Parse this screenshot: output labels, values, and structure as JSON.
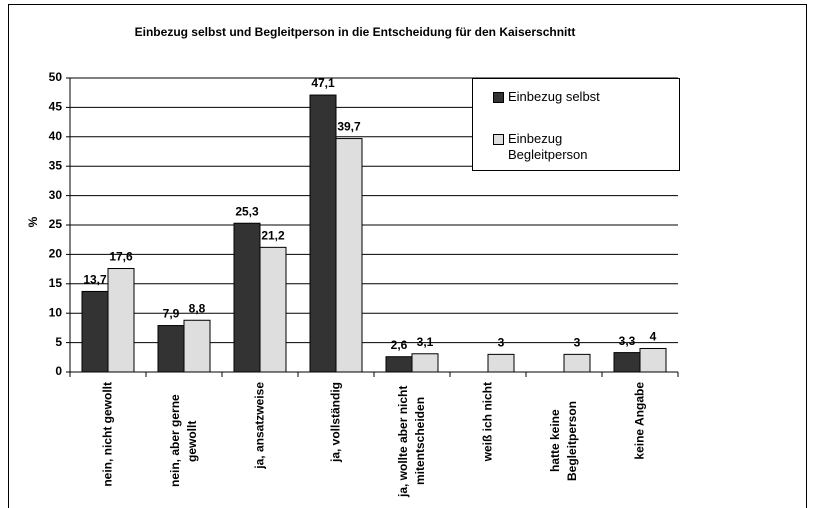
{
  "chart_data": {
    "type": "bar",
    "title": "Einbezug selbst und Begleitperson in die Entscheidung für den Kaiserschnitt",
    "y_label": "%",
    "categories": [
      "nein, nicht gewollt",
      "nein, aber gerne gewollt",
      "ja, ansatzweise",
      "ja, vollständig",
      "ja, wollte aber nicht mitentscheiden",
      "weiß ich nicht",
      "hatte keine Begleitperson",
      "keine Angabe"
    ],
    "series": [
      {
        "name": "Einbezug selbst",
        "color": "#333333",
        "values": [
          13.7,
          7.9,
          25.3,
          47.1,
          2.6,
          null,
          null,
          3.3
        ],
        "value_labels": [
          "13,7",
          "7,9",
          "25,3",
          "47,1",
          "2,6",
          null,
          null,
          "3,3"
        ]
      },
      {
        "name": "Einbezug Begleitperson",
        "color": "#dedede",
        "values": [
          17.6,
          8.8,
          21.2,
          39.7,
          3.1,
          3,
          3,
          4
        ],
        "value_labels": [
          "17,6",
          "8,8",
          "21,2",
          "39,7",
          "3,1",
          "3",
          "3",
          "4"
        ]
      }
    ],
    "ylim": [
      0,
      50
    ],
    "yticks": [
      0,
      5,
      10,
      15,
      20,
      25,
      30,
      35,
      40,
      45,
      50
    ],
    "grid": true,
    "legend": "upper right"
  }
}
